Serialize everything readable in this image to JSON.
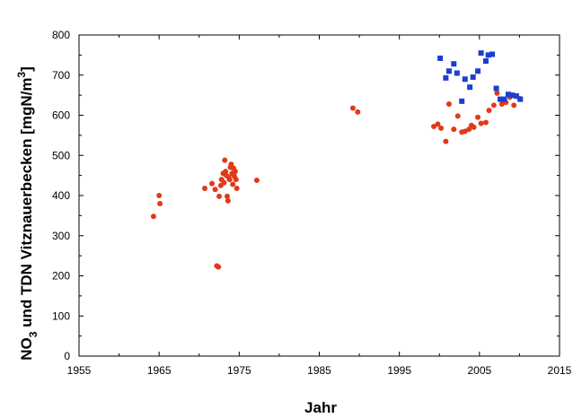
{
  "chart_data": {
    "type": "scatter",
    "xlabel": "Jahr",
    "ylabel_parts": {
      "no": "NO",
      "no_sub": "3",
      "main": " und TDN Vitznauerbecken  [mgN/m",
      "unit_sup": "3",
      "close": "]"
    },
    "xlim": [
      1955,
      2015
    ],
    "ylim": [
      0,
      800
    ],
    "xticks": [
      1955,
      1965,
      1975,
      1985,
      1995,
      2005,
      2015
    ],
    "yticks": [
      0,
      100,
      200,
      300,
      400,
      500,
      600,
      700,
      800
    ],
    "grid": false,
    "series": [
      {
        "marker": "circle",
        "color": "#e03a17",
        "points": [
          [
            1964.3,
            348
          ],
          [
            1965.0,
            400
          ],
          [
            1965.1,
            380
          ],
          [
            1970.7,
            418
          ],
          [
            1971.6,
            430
          ],
          [
            1972.0,
            415
          ],
          [
            1972.2,
            225
          ],
          [
            1972.4,
            222
          ],
          [
            1972.5,
            398
          ],
          [
            1972.7,
            425
          ],
          [
            1972.8,
            440
          ],
          [
            1973.0,
            455
          ],
          [
            1973.1,
            432
          ],
          [
            1973.2,
            488
          ],
          [
            1973.3,
            460
          ],
          [
            1973.4,
            450
          ],
          [
            1973.5,
            398
          ],
          [
            1973.6,
            387
          ],
          [
            1973.7,
            445
          ],
          [
            1973.8,
            440
          ],
          [
            1973.9,
            470
          ],
          [
            1974.0,
            478
          ],
          [
            1974.1,
            455
          ],
          [
            1974.2,
            428
          ],
          [
            1974.3,
            468
          ],
          [
            1974.4,
            448
          ],
          [
            1974.5,
            460
          ],
          [
            1974.6,
            440
          ],
          [
            1974.7,
            418
          ],
          [
            1977.2,
            438
          ],
          [
            1989.2,
            618
          ],
          [
            1989.8,
            608
          ],
          [
            1999.3,
            572
          ],
          [
            1999.8,
            578
          ],
          [
            2000.2,
            568
          ],
          [
            2000.8,
            535
          ],
          [
            2001.2,
            628
          ],
          [
            2001.8,
            565
          ],
          [
            2002.3,
            598
          ],
          [
            2002.8,
            558
          ],
          [
            2003.2,
            560
          ],
          [
            2003.7,
            565
          ],
          [
            2004.0,
            575
          ],
          [
            2004.3,
            570
          ],
          [
            2004.8,
            595
          ],
          [
            2005.2,
            580
          ],
          [
            2005.8,
            582
          ],
          [
            2006.2,
            612
          ],
          [
            2006.8,
            625
          ],
          [
            2007.2,
            655
          ],
          [
            2007.8,
            628
          ],
          [
            2008.3,
            632
          ],
          [
            2008.8,
            645
          ],
          [
            2009.3,
            625
          ],
          [
            2010.0,
            642
          ]
        ]
      },
      {
        "marker": "square",
        "color": "#1a3fd1",
        "points": [
          [
            2000.1,
            742
          ],
          [
            2000.8,
            693
          ],
          [
            2001.2,
            710
          ],
          [
            2001.8,
            728
          ],
          [
            2002.2,
            705
          ],
          [
            2002.8,
            635
          ],
          [
            2003.2,
            690
          ],
          [
            2003.8,
            670
          ],
          [
            2004.2,
            695
          ],
          [
            2004.8,
            710
          ],
          [
            2005.2,
            755
          ],
          [
            2005.8,
            735
          ],
          [
            2006.1,
            750
          ],
          [
            2006.6,
            752
          ],
          [
            2007.1,
            667
          ],
          [
            2007.6,
            640
          ],
          [
            2008.1,
            640
          ],
          [
            2008.6,
            652
          ],
          [
            2009.1,
            650
          ],
          [
            2009.6,
            648
          ],
          [
            2010.1,
            640
          ]
        ]
      }
    ]
  }
}
